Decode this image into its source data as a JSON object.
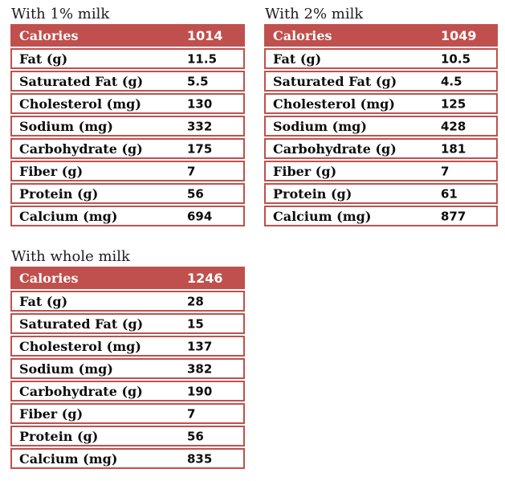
{
  "colors": {
    "accent": "#c0504d",
    "header_text": "#ffffff",
    "body_text": "#0d0d0d",
    "title_text": "#1c1c1c",
    "background": "#ffffff"
  },
  "chart_data": [
    {
      "type": "table",
      "title": "With 1% milk",
      "header_row": {
        "label": "Calories",
        "value": 1014
      },
      "rows": [
        {
          "label": "Fat (g)",
          "value": 11.5
        },
        {
          "label": "Saturated Fat (g)",
          "value": 5.5
        },
        {
          "label": "Cholesterol (mg)",
          "value": 130
        },
        {
          "label": "Sodium (mg)",
          "value": 332
        },
        {
          "label": "Carbohydrate (g)",
          "value": 175
        },
        {
          "label": "Fiber (g)",
          "value": 7
        },
        {
          "label": "Protein (g)",
          "value": 56
        },
        {
          "label": "Calcium (mg)",
          "value": 694
        }
      ]
    },
    {
      "type": "table",
      "title": "With 2% milk",
      "header_row": {
        "label": "Calories",
        "value": 1049
      },
      "rows": [
        {
          "label": "Fat (g)",
          "value": 10.5
        },
        {
          "label": "Saturated Fat (g)",
          "value": 4.5
        },
        {
          "label": "Cholesterol (mg)",
          "value": 125
        },
        {
          "label": "Sodium (mg)",
          "value": 428
        },
        {
          "label": "Carbohydrate (g)",
          "value": 181
        },
        {
          "label": "Fiber (g)",
          "value": 7
        },
        {
          "label": "Protein (g)",
          "value": 61
        },
        {
          "label": "Calcium (mg)",
          "value": 877
        }
      ]
    },
    {
      "type": "table",
      "title": "With whole milk",
      "header_row": {
        "label": "Calories",
        "value": 1246
      },
      "rows": [
        {
          "label": "Fat (g)",
          "value": 28
        },
        {
          "label": "Saturated Fat (g)",
          "value": 15
        },
        {
          "label": "Cholesterol (mg)",
          "value": 137
        },
        {
          "label": "Sodium (mg)",
          "value": 382
        },
        {
          "label": "Carbohydrate (g)",
          "value": 190
        },
        {
          "label": "Fiber (g)",
          "value": 7
        },
        {
          "label": "Protein (g)",
          "value": 56
        },
        {
          "label": "Calcium (mg)",
          "value": 835
        }
      ]
    }
  ]
}
